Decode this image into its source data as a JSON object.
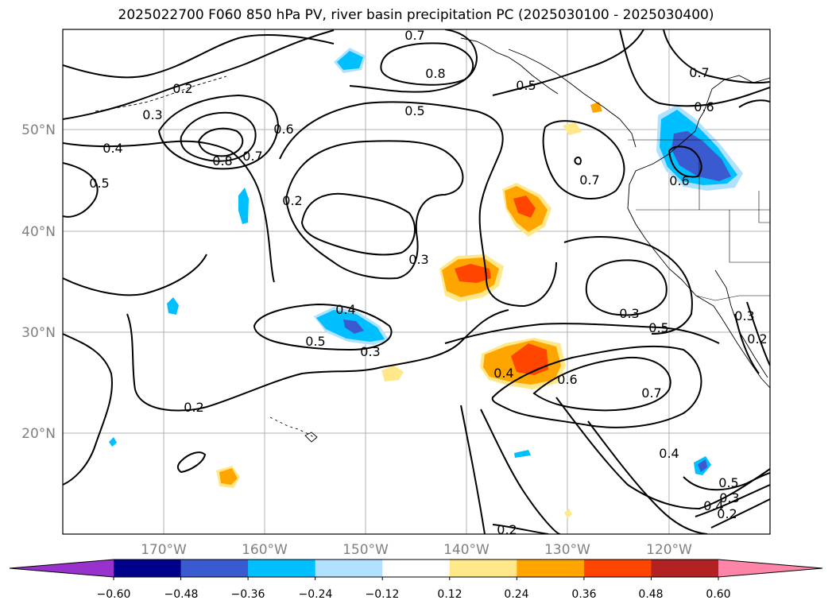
{
  "title": "2025022700 F060 850 hPa PV, river basin precipitation PC (2025030100 - 2025030400)",
  "map": {
    "lon_ticks": [
      "170°W",
      "160°W",
      "150°W",
      "140°W",
      "130°W",
      "120°W"
    ],
    "lat_ticks": [
      "50°N",
      "40°N",
      "30°N",
      "20°N"
    ],
    "contour_labels": [
      "0.7",
      "0.8",
      "0.5",
      "0.2",
      "0.3",
      "0.4",
      "0.5",
      "0.8",
      "0.7",
      "0.6",
      "0.2",
      "0.3",
      "0.5",
      "0.7",
      "0.6",
      "0.7",
      "0.6",
      "0.4",
      "0.5",
      "0.3",
      "0.2",
      "0.4",
      "0.6",
      "0.7",
      "0.5",
      "0.3",
      "0.4",
      "0.5",
      "0.4",
      "0.3",
      "0.2",
      "0.2",
      "0.3",
      "0.2"
    ],
    "grid": true,
    "colors": {
      "contour": "#000000",
      "grid": "#b0b0b0",
      "coast": "#000000"
    }
  },
  "colorbar": {
    "ticks": [
      "−0.60",
      "−0.48",
      "−0.36",
      "−0.24",
      "−0.12",
      "0.12",
      "0.24",
      "0.36",
      "0.48",
      "0.60"
    ],
    "colors": [
      "#9932cc",
      "#00008b",
      "#3a5bd0",
      "#00bfff",
      "#b0e2ff",
      "#ffffff",
      "#ffe88a",
      "#ffa500",
      "#ff4500",
      "#b22222",
      "#ff85a8"
    ]
  }
}
